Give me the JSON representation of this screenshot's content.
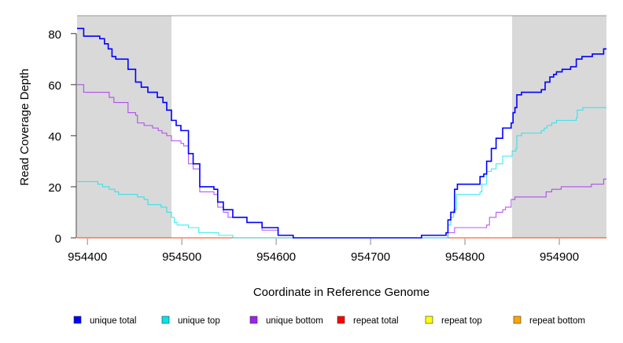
{
  "chart_data": {
    "type": "line",
    "title": "",
    "xlabel": "Coordinate in Reference Genome",
    "ylabel": "Read Coverage Depth",
    "xlim": [
      954389,
      954950
    ],
    "ylim": [
      0,
      87
    ],
    "x_ticks": [
      954400,
      954500,
      954600,
      954700,
      954800,
      954900
    ],
    "y_ticks": [
      0,
      20,
      40,
      60,
      80
    ],
    "shaded_regions": [
      [
        954389,
        954489
      ],
      [
        954850,
        954950
      ]
    ],
    "shade_color": "#d9d9d9",
    "legend_position": "bottom",
    "series": [
      {
        "name": "unique total",
        "color": "#0000ff",
        "steps": [
          [
            954389,
            82
          ],
          [
            954396,
            79
          ],
          [
            954413,
            78
          ],
          [
            954418,
            76
          ],
          [
            954422,
            74
          ],
          [
            954426,
            71
          ],
          [
            954430,
            70
          ],
          [
            954443,
            66
          ],
          [
            954451,
            61
          ],
          [
            954457,
            59
          ],
          [
            954464,
            57
          ],
          [
            954474,
            55
          ],
          [
            954480,
            53
          ],
          [
            954484,
            50
          ],
          [
            954489,
            46
          ],
          [
            954494,
            44
          ],
          [
            954499,
            42
          ],
          [
            954507,
            33
          ],
          [
            954512,
            29
          ],
          [
            954519,
            20
          ],
          [
            954534,
            19
          ],
          [
            954538,
            14
          ],
          [
            954544,
            11
          ],
          [
            954554,
            8
          ],
          [
            954569,
            6
          ],
          [
            954585,
            4
          ],
          [
            954602,
            1
          ],
          [
            954618,
            0
          ],
          [
            954754,
            1
          ],
          [
            954780,
            2
          ],
          [
            954782,
            7
          ],
          [
            954785,
            10
          ],
          [
            954789,
            19
          ],
          [
            954792,
            21
          ],
          [
            954816,
            24
          ],
          [
            954820,
            25
          ],
          [
            954823,
            30
          ],
          [
            954828,
            35
          ],
          [
            954833,
            39
          ],
          [
            954840,
            43
          ],
          [
            954849,
            45
          ],
          [
            954851,
            49
          ],
          [
            954853,
            51
          ],
          [
            954855,
            56
          ],
          [
            954860,
            57
          ],
          [
            954881,
            58
          ],
          [
            954885,
            61
          ],
          [
            954890,
            63
          ],
          [
            954894,
            64
          ],
          [
            954897,
            65
          ],
          [
            954903,
            66
          ],
          [
            954912,
            67
          ],
          [
            954918,
            70
          ],
          [
            954924,
            71
          ],
          [
            954935,
            72
          ],
          [
            954947,
            74
          ],
          [
            954950,
            74
          ]
        ]
      },
      {
        "name": "unique top",
        "color": "#00e5ee",
        "steps": [
          [
            954389,
            22
          ],
          [
            954411,
            21
          ],
          [
            954416,
            20
          ],
          [
            954423,
            19
          ],
          [
            954429,
            18
          ],
          [
            954433,
            17
          ],
          [
            954453,
            16
          ],
          [
            954460,
            15
          ],
          [
            954464,
            13
          ],
          [
            954478,
            12
          ],
          [
            954484,
            10
          ],
          [
            954489,
            8
          ],
          [
            954492,
            6
          ],
          [
            954495,
            5
          ],
          [
            954507,
            4
          ],
          [
            954518,
            2
          ],
          [
            954539,
            1
          ],
          [
            954554,
            0
          ],
          [
            954782,
            5
          ],
          [
            954785,
            8
          ],
          [
            954788,
            11
          ],
          [
            954791,
            17
          ],
          [
            954816,
            18
          ],
          [
            954818,
            21
          ],
          [
            954823,
            26
          ],
          [
            954828,
            27
          ],
          [
            954833,
            29
          ],
          [
            954840,
            32
          ],
          [
            954850,
            34
          ],
          [
            954854,
            35
          ],
          [
            954855,
            40
          ],
          [
            954860,
            41
          ],
          [
            954881,
            42
          ],
          [
            954884,
            43
          ],
          [
            954887,
            44
          ],
          [
            954892,
            45
          ],
          [
            954897,
            46
          ],
          [
            954918,
            47
          ],
          [
            954919,
            50
          ],
          [
            954925,
            51
          ],
          [
            954950,
            51
          ]
        ]
      },
      {
        "name": "unique bottom",
        "color": "#a020f0",
        "steps": [
          [
            954389,
            60
          ],
          [
            954396,
            57
          ],
          [
            954423,
            55
          ],
          [
            954428,
            53
          ],
          [
            954443,
            49
          ],
          [
            954451,
            48
          ],
          [
            954453,
            45
          ],
          [
            954460,
            44
          ],
          [
            954469,
            43
          ],
          [
            954475,
            42
          ],
          [
            954479,
            41
          ],
          [
            954484,
            40
          ],
          [
            954489,
            38
          ],
          [
            954499,
            37
          ],
          [
            954502,
            36
          ],
          [
            954507,
            29
          ],
          [
            954512,
            27
          ],
          [
            954519,
            18
          ],
          [
            954534,
            17
          ],
          [
            954538,
            12
          ],
          [
            954544,
            10
          ],
          [
            954549,
            8
          ],
          [
            954569,
            6
          ],
          [
            954585,
            3
          ],
          [
            954602,
            1
          ],
          [
            954618,
            0
          ],
          [
            954782,
            2
          ],
          [
            954789,
            4
          ],
          [
            954823,
            5
          ],
          [
            954826,
            8
          ],
          [
            954833,
            10
          ],
          [
            954840,
            11
          ],
          [
            954843,
            12
          ],
          [
            954849,
            15
          ],
          [
            954853,
            16
          ],
          [
            954886,
            18
          ],
          [
            954892,
            19
          ],
          [
            954902,
            20
          ],
          [
            954934,
            21
          ],
          [
            954947,
            23
          ],
          [
            954950,
            23
          ]
        ]
      },
      {
        "name": "repeat total",
        "color": "#ff0000",
        "steps": [
          [
            954389,
            0
          ],
          [
            954950,
            0
          ]
        ]
      },
      {
        "name": "repeat top",
        "color": "#ffff00",
        "steps": [
          [
            954389,
            0
          ],
          [
            954950,
            0
          ]
        ]
      },
      {
        "name": "repeat bottom",
        "color": "#ffa500",
        "steps": [
          [
            954389,
            0
          ],
          [
            954950,
            0
          ]
        ]
      }
    ]
  }
}
